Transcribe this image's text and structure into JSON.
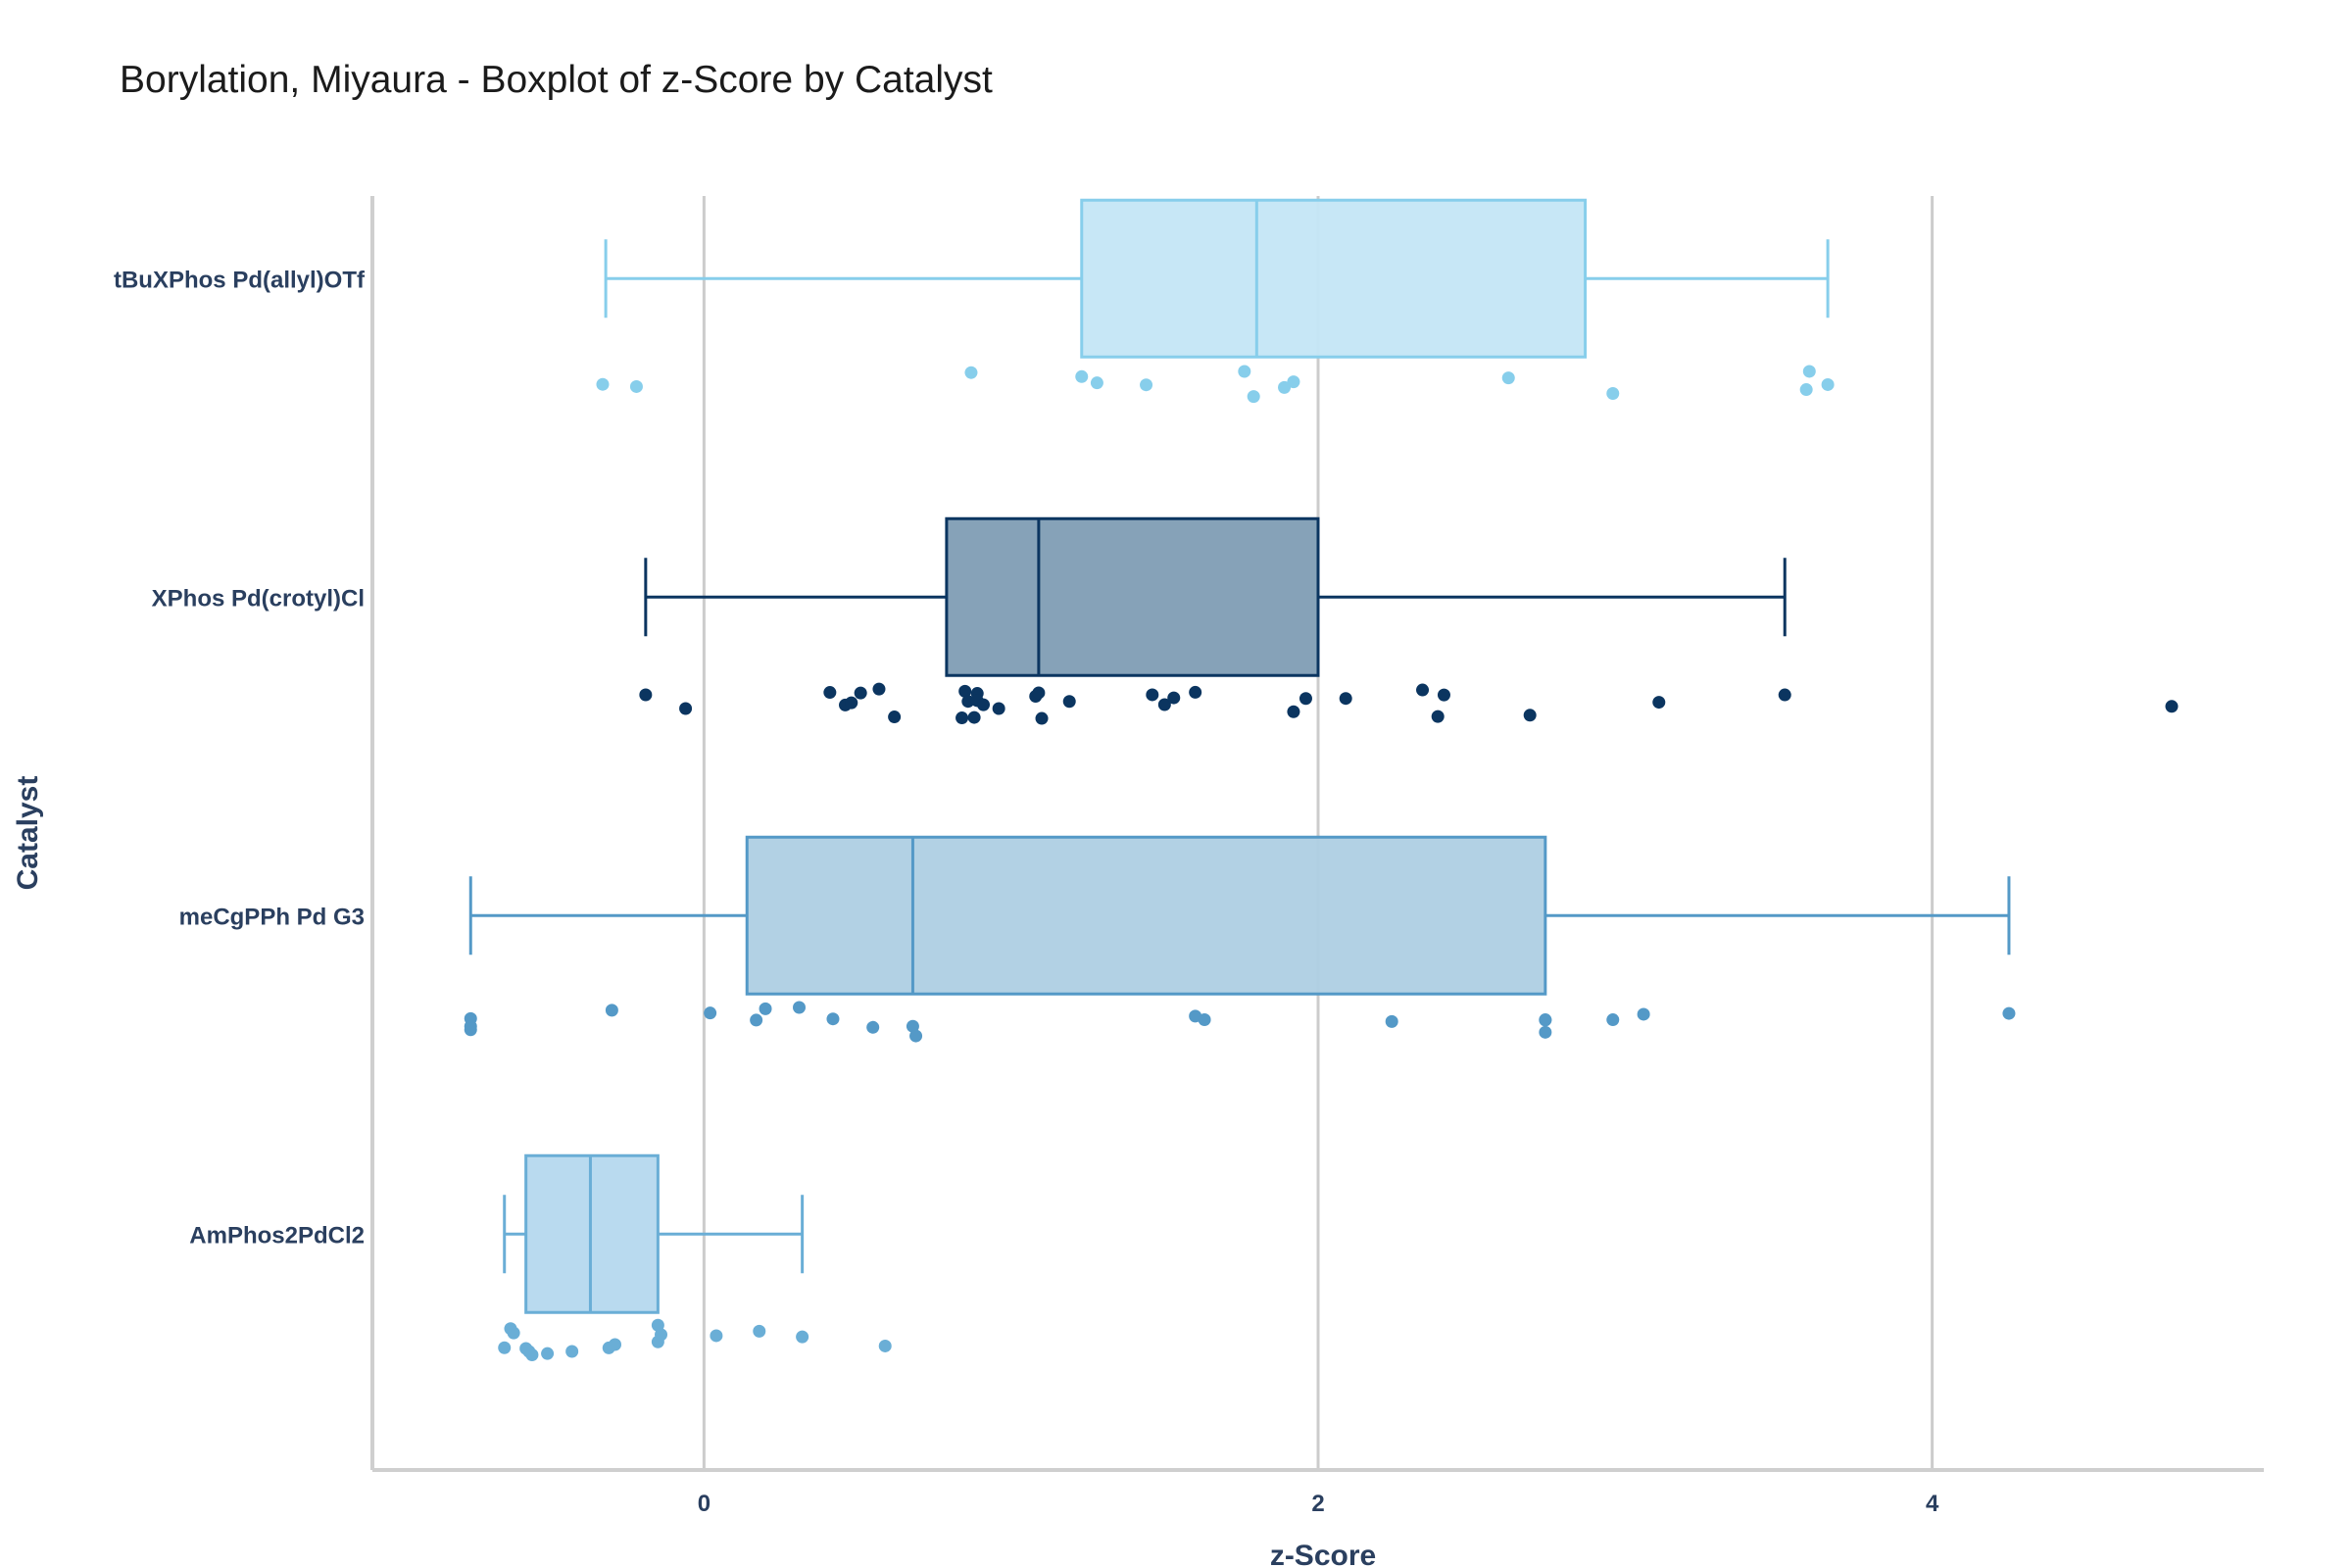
{
  "chart_data": {
    "type": "box",
    "title": "Borylation, Miyaura - Boxplot of z-Score by Catalyst",
    "xlabel": "z-Score",
    "ylabel": "Catalyst",
    "xlim": [
      -1.08,
      5.08
    ],
    "xticks": [
      0,
      2,
      4
    ],
    "grid": "vertical",
    "legend": "none",
    "categories": [
      "tBuXPhos Pd(allyl)OTf",
      "XPhos Pd(crotyl)Cl",
      "meCgPPh Pd G3",
      "AmPhos2PdCl2"
    ],
    "series": [
      {
        "category": "tBuXPhos Pd(allyl)OTf",
        "color": "#87CEEB",
        "fill": "#C4E6F6",
        "whisker_low": -0.32,
        "q1": 1.23,
        "median": 1.8,
        "q3": 2.87,
        "whisker_high": 3.66,
        "points": [
          -0.33,
          -0.22,
          0.87,
          1.23,
          1.28,
          1.44,
          1.76,
          1.79,
          1.89,
          1.92,
          2.62,
          2.96,
          3.59,
          3.6,
          3.66
        ]
      },
      {
        "category": "XPhos Pd(crotyl)Cl",
        "color": "#0B3560",
        "fill": "#7F9DB4",
        "whisker_low": -0.19,
        "q1": 0.79,
        "median": 1.09,
        "q3": 2.0,
        "whisker_high": 3.52,
        "points": [
          -0.19,
          -0.06,
          0.41,
          0.46,
          0.48,
          0.51,
          0.57,
          0.62,
          0.84,
          0.85,
          0.86,
          0.88,
          0.89,
          0.89,
          0.91,
          0.96,
          1.08,
          1.09,
          1.1,
          1.19,
          1.46,
          1.5,
          1.53,
          1.6,
          1.92,
          1.96,
          2.09,
          2.34,
          2.39,
          2.41,
          2.69,
          3.11,
          3.52,
          4.78
        ]
      },
      {
        "category": "meCgPPh Pd G3",
        "color": "#5499C7",
        "fill": "#AECFE3",
        "whisker_low": -0.76,
        "q1": 0.14,
        "median": 0.68,
        "q3": 2.74,
        "whisker_high": 4.25,
        "points": [
          -0.76,
          -0.76,
          -0.76,
          -0.3,
          0.02,
          0.17,
          0.2,
          0.31,
          0.42,
          0.55,
          0.68,
          0.69,
          1.6,
          1.63,
          2.24,
          2.74,
          2.74,
          2.74,
          2.96,
          3.06,
          4.25
        ]
      },
      {
        "category": "AmPhos2PdCl2",
        "color": "#6AAED6",
        "fill": "#B5D8EE",
        "whisker_low": -0.65,
        "q1": -0.58,
        "median": -0.37,
        "q3": -0.15,
        "whisker_high": 0.32,
        "points": [
          -0.65,
          -0.63,
          -0.62,
          -0.58,
          -0.57,
          -0.56,
          -0.51,
          -0.43,
          -0.31,
          -0.29,
          -0.15,
          -0.15,
          -0.14,
          0.04,
          0.18,
          0.32,
          0.59
        ]
      }
    ]
  }
}
